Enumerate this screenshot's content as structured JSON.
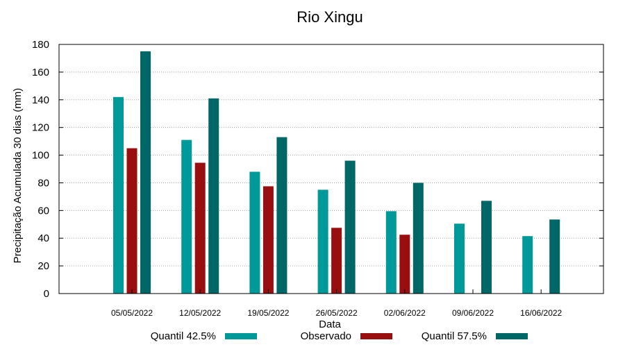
{
  "chart_data": {
    "type": "bar",
    "title": "Rio Xingu",
    "xlabel": "Data",
    "ylabel": "Precipitação Acumulada 30 dias (mm)",
    "ylim": [
      0,
      180
    ],
    "yticks": [
      0,
      20,
      40,
      60,
      80,
      100,
      120,
      140,
      160,
      180
    ],
    "grid": true,
    "legend_position": "bottom",
    "categories": [
      "05/05/2022",
      "12/05/2022",
      "19/05/2022",
      "26/05/2022",
      "02/06/2022",
      "09/06/2022",
      "16/06/2022"
    ],
    "series": [
      {
        "name": "Quantil 42.5%",
        "color": "#009999",
        "values": [
          142,
          111,
          88,
          75,
          59.5,
          50.5,
          41.5
        ]
      },
      {
        "name": "Observado",
        "color": "#990f0f",
        "values": [
          105,
          94.5,
          77.5,
          47.5,
          42.5,
          null,
          null
        ]
      },
      {
        "name": "Quantil 57.5%",
        "color": "#006666",
        "values": [
          175,
          141,
          113,
          96,
          80,
          67,
          53.5
        ]
      }
    ]
  }
}
